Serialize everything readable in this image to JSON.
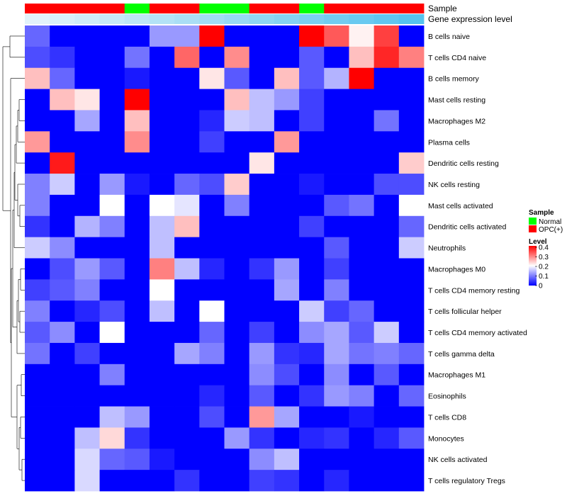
{
  "chart_data": {
    "type": "heatmap",
    "rows": [
      "B cells naive",
      "T cells CD4 naive",
      "B cells memory",
      "Mast cells resting",
      "Macrophages M2",
      "Plasma cells",
      "Dendritic cells resting",
      "NK cells resting",
      "Mast cells activated",
      "Dendritic cells activated",
      "Neutrophils",
      "Macrophages M0",
      "T cells CD4 memory resting",
      "T cells follicular helper",
      "T cells CD4 memory activated",
      "T cells gamma delta",
      "Macrophages M1",
      "Eosinophils",
      "T cells CD8",
      "Monocytes",
      "NK cells activated",
      "T cells regulatory  Tregs"
    ],
    "column_count": 16,
    "annotation_tracks": [
      {
        "name": "Sample",
        "values": [
          "OPC(+)",
          "OPC(+)",
          "OPC(+)",
          "OPC(+)",
          "Normal",
          "OPC(+)",
          "OPC(+)",
          "Normal",
          "Normal",
          "OPC(+)",
          "OPC(+)",
          "Normal",
          "OPC(+)",
          "OPC(+)",
          "OPC(+)",
          "OPC(+)"
        ]
      },
      {
        "name": "Gene expression level",
        "values": [
          0.02,
          0.05,
          0.08,
          0.11,
          0.14,
          0.17,
          0.2,
          0.23,
          0.26,
          0.29,
          0.32,
          0.35,
          0.38,
          0.41,
          0.44,
          0.47
        ]
      }
    ],
    "values": [
      [
        0.08,
        0,
        0,
        0,
        0,
        0.12,
        0.12,
        0.4,
        0,
        0,
        0,
        0.4,
        0.33,
        0.21,
        0.35,
        0
      ],
      [
        0.06,
        0.04,
        0,
        0,
        0.09,
        0,
        0.32,
        0,
        0.29,
        0,
        0,
        0.07,
        0,
        0.25,
        0.37,
        0.3
      ],
      [
        0.25,
        0.08,
        0,
        0,
        0.02,
        0,
        0,
        0.22,
        0.07,
        0,
        0.25,
        0.07,
        0.14,
        0.4,
        0,
        0
      ],
      [
        0,
        0.25,
        0.22,
        0,
        0.4,
        0,
        0,
        0,
        0.25,
        0.15,
        0.12,
        0.05,
        0,
        0,
        0,
        0
      ],
      [
        0,
        0,
        0.13,
        0,
        0.25,
        0,
        0,
        0.03,
        0.16,
        0.15,
        0,
        0.05,
        0,
        0,
        0.09,
        0
      ],
      [
        0.28,
        0,
        0,
        0,
        0.29,
        0,
        0,
        0.05,
        0,
        0,
        0.28,
        0,
        0,
        0,
        0,
        0
      ],
      [
        0,
        0.38,
        0,
        0,
        0,
        0,
        0,
        0,
        0,
        0.22,
        0,
        0,
        0,
        0,
        0,
        0.24
      ],
      [
        0.1,
        0.16,
        0,
        0.12,
        0.02,
        0,
        0.08,
        0.06,
        0.24,
        0,
        0,
        0.02,
        0,
        0,
        0.06,
        0.06
      ],
      [
        0.1,
        0,
        0,
        0.2,
        0,
        0.2,
        0.18,
        0,
        0.1,
        0,
        0,
        0,
        0.07,
        0.09,
        0,
        0.2
      ],
      [
        0.04,
        0,
        0.14,
        0.1,
        0,
        0.15,
        0.25,
        0,
        0,
        0,
        0,
        0.05,
        0,
        0,
        0,
        0.08
      ],
      [
        0.16,
        0.11,
        0,
        0,
        0,
        0.15,
        0,
        0,
        0,
        0,
        0,
        0,
        0.07,
        0,
        0,
        0.16
      ],
      [
        0,
        0.06,
        0.12,
        0.07,
        0,
        0.3,
        0.15,
        0.03,
        0,
        0.04,
        0.12,
        0,
        0.05,
        0,
        0,
        0
      ],
      [
        0.05,
        0.07,
        0.1,
        0,
        0,
        0.2,
        0,
        0,
        0,
        0,
        0.13,
        0,
        0.1,
        0,
        0,
        0
      ],
      [
        0.1,
        0,
        0.03,
        0.06,
        0,
        0.15,
        0,
        0.2,
        0,
        0,
        0,
        0.16,
        0.05,
        0.08,
        0,
        0
      ],
      [
        0.07,
        0.11,
        0,
        0.2,
        0,
        0,
        0,
        0.08,
        0,
        0.05,
        0,
        0.11,
        0.13,
        0.07,
        0.16,
        0
      ],
      [
        0.09,
        0,
        0.05,
        0,
        0,
        0,
        0.13,
        0.1,
        0,
        0.12,
        0.04,
        0.03,
        0.13,
        0.09,
        0.1,
        0.08
      ],
      [
        0,
        0,
        0,
        0.1,
        0,
        0,
        0,
        0,
        0,
        0.11,
        0.06,
        0,
        0.11,
        0,
        0.07,
        0
      ],
      [
        0,
        0,
        0,
        0,
        0,
        0,
        0,
        0.03,
        0,
        0.07,
        0,
        0.04,
        0.12,
        0.1,
        0,
        0.08
      ],
      [
        0,
        0,
        0,
        0.15,
        0.12,
        0,
        0,
        0.06,
        0,
        0.28,
        0.13,
        0,
        0,
        0.02,
        0,
        0
      ],
      [
        0,
        0,
        0.15,
        0.23,
        0.04,
        0,
        0,
        0,
        0.12,
        0.04,
        0,
        0.03,
        0.04,
        0,
        0.03,
        0.07
      ],
      [
        0,
        0,
        0.17,
        0.08,
        0.07,
        0.02,
        0,
        0,
        0,
        0.11,
        0.15,
        0,
        0,
        0,
        0,
        0
      ],
      [
        0,
        0,
        0.17,
        0,
        0,
        0,
        0.04,
        0,
        0,
        0.05,
        0.04,
        0,
        0.03,
        0,
        0,
        0
      ]
    ],
    "legend": {
      "sample_title": "Sample",
      "sample_entries": [
        {
          "label": "Normal",
          "color": "#00ff00"
        },
        {
          "label": "OPC(+)",
          "color": "#ff0000"
        }
      ],
      "level_title": "Level",
      "level_ticks": [
        "0.4",
        "0.3",
        "0.2",
        "0.1",
        "0"
      ],
      "level_range": [
        0,
        0.4
      ]
    },
    "colors": {
      "low": "#0000ff",
      "mid": "#ffffff",
      "high": "#ff0000",
      "gene_low": "#e8f4fb",
      "gene_high": "#56c3ee"
    }
  }
}
